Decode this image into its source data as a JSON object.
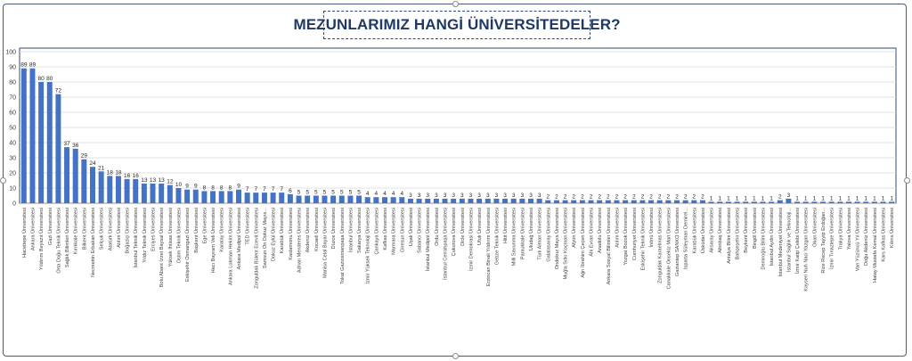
{
  "chart_data": {
    "type": "bar",
    "title": "MEZUNLARIMIZ HANGİ  ÜNİVERSİTEDELER?",
    "xlabel": "",
    "ylabel": "",
    "ylim": [
      0,
      100
    ],
    "yticks": [
      0,
      10,
      20,
      30,
      40,
      50,
      60,
      70,
      80,
      90,
      100
    ],
    "grid": true,
    "legend": "none",
    "bar_color": "#4472c4",
    "categories": [
      "Hacettepe Üniversitesi",
      "Ankara Üniversitesi",
      "Yıldırım Beyazıt Üniversitesi",
      "Gazi Üniversitesi",
      "Orta Doğu Teknik Üniversitesi",
      "Sağlık Bilimleri Üniversitesi",
      "Kırıkkale Üniversitesi",
      "Bilkent Üniversitesi",
      "Necmettin Erbakan Üniversitesi",
      "Selçuk Üniversitesi",
      "Atatürk Üniversitesi",
      "Atılım Üniversitesi",
      "Boğaziçi Üniversitesi",
      "İstanbul Teknik Üniversitesi",
      "Yıldız Teknik Üniversitesi",
      "Erciyes Üniversitesi",
      "Bolu Abant İzzet Baysal Üniversitesi",
      "Yüksek İhtisas Üniversitesi",
      "Ostim Teknik Üniversitesi",
      "Eskişehir Osmangazi Üniversitesi",
      "Başkent Üniversitesi",
      "Ege Üniversitesi",
      "Hacı Bayram Veli Üniversitesi",
      "Karatay Üniversitesi",
      "Ankara Lokman Hekim Üniversitesi",
      "Ankara Medipol Üniversitesi",
      "TED Üniversitesi",
      "Zonguldak Bülent Ecevit Üniversitesi",
      "Samsun On Dokuz Mayıs...",
      "Dokuz Eylül Üniversitesi",
      "Karabük Üniversitesi",
      "Kastamonu Üniversitesi",
      "Adnan Menderes Üniversitesi",
      "Akdeniz Üniversitesi",
      "Kocaeli Üniversitesi",
      "Manisa Celal Bayar Üniversitesi",
      "Düzce Üniversitesi",
      "Tokat Gaziosmanpaşa Üniversitesi",
      "İstanbul Üniversitesi",
      "Sakarya Üniversitesi",
      "İzmir Yüksek Teknoloji Üniversitesi",
      "Çankaya Üniversitesi",
      "Kafkas Üniversitesi",
      "Marmara Üniversitesi",
      "Giresun Üniversitesi",
      "Uşak Üniversitesi",
      "Sabancı Üniversitesi",
      "İstanbul Medipol Üniversitesi",
      "Ordu Üniversitesi",
      "İstanbul Cerrahpaşa Üniversitesi",
      "Çukurova Üniversitesi",
      "Dicle Üniversitesi",
      "İzmir Demokrasi Üniversitesi",
      "Ufuk Üniversitesi",
      "Erzincan Binali Yıldırım Üniversitesi",
      "Gebze Teknik Üniversitesi",
      "Hitit Üniversitesi",
      "Milli Savunma Üniversitesi",
      "Pamukkale Üniversitesi",
      "Uludağ Üniversitesi",
      "Türk Alman Üniversitesi",
      "Galatasaray Üniversitesi",
      "Ondokuz Mayıs Üniversitesi",
      "Muğla Sıtkı Koçman Üniversitesi",
      "Afyon Üniversitesi",
      "Ağrı İbrahim Çeçen Üniversitesi",
      "Ahi Evran Üniversitesi",
      "Anadolu Üniversitesi",
      "Ankara Sosyal Bilimler Üniversitesi",
      "Atılım Üniversitesi",
      "Yozgat Bozok Üniversitesi",
      "Cumhuriyet Üniversitesi",
      "Eskişehir Teknik Üniversitesi",
      "İnönü Üniversitesi",
      "Zonguldak Karaelmas Üniversitesi",
      "Canakkale Onsekiz Mart Üniversitesi",
      "Gaziantep SANKO Üniversitesi",
      "Isparta Süleyman Demirel...",
      "Karabük Üniversitesi",
      "Üsküdar Üniversitesi",
      "Aksaray Üniversitesi",
      "Altınbaş Üniversitesi",
      "Antalya Bilim Üniversitesi",
      "Bahçeşehir Üniversitesi",
      "Beykent Üniversitesi",
      "Bingöl Üniversitesi",
      "Demiroğlu Bilim Üniversitesi",
      "İstanbul Aydın Üniversitesi",
      "İstanbul Medeniyet Üniversitesi",
      "İstanbul Sağlık ve Teknoloji...",
      "İzmir Katip Çelebi Üniversitesi",
      "Kayseri Nuh Naci Yazgan Üniversitesi",
      "Okan Üniversitesi",
      "Rize Recep Tayyip Erdoğan...",
      "İzmir Tınaztepe Üniversitesi",
      "Trakya Üniversitesi",
      "Yalova Üniversitesi",
      "Van Yüzüncü Yıl Üniversitesi",
      "Doğu Akdeniz Üniversitesi",
      "Hatay Mustafa Kemal Üniversitesi",
      "Kars Kafkas Üniversitesi",
      "Kıbrıs Üniversitesi"
    ],
    "values": [
      89,
      89,
      80,
      80,
      72,
      37,
      36,
      29,
      24,
      21,
      18,
      18,
      16,
      16,
      13,
      13,
      13,
      12,
      10,
      9,
      9,
      8,
      8,
      8,
      8,
      9,
      7,
      7,
      7,
      7,
      7,
      6,
      5,
      5,
      5,
      5,
      5,
      5,
      5,
      5,
      4,
      4,
      4,
      4,
      4,
      3,
      3,
      3,
      3,
      3,
      3,
      3,
      3,
      3,
      3,
      3,
      3,
      3,
      3,
      3,
      3,
      2,
      2,
      2,
      2,
      2,
      2,
      2,
      2,
      2,
      2,
      2,
      2,
      2,
      2,
      2,
      2,
      2,
      2,
      2,
      1,
      1,
      1,
      1,
      1,
      1,
      1,
      1,
      2,
      3,
      1,
      1,
      1,
      1,
      1,
      1,
      1,
      1,
      1,
      1,
      1,
      1
    ]
  }
}
